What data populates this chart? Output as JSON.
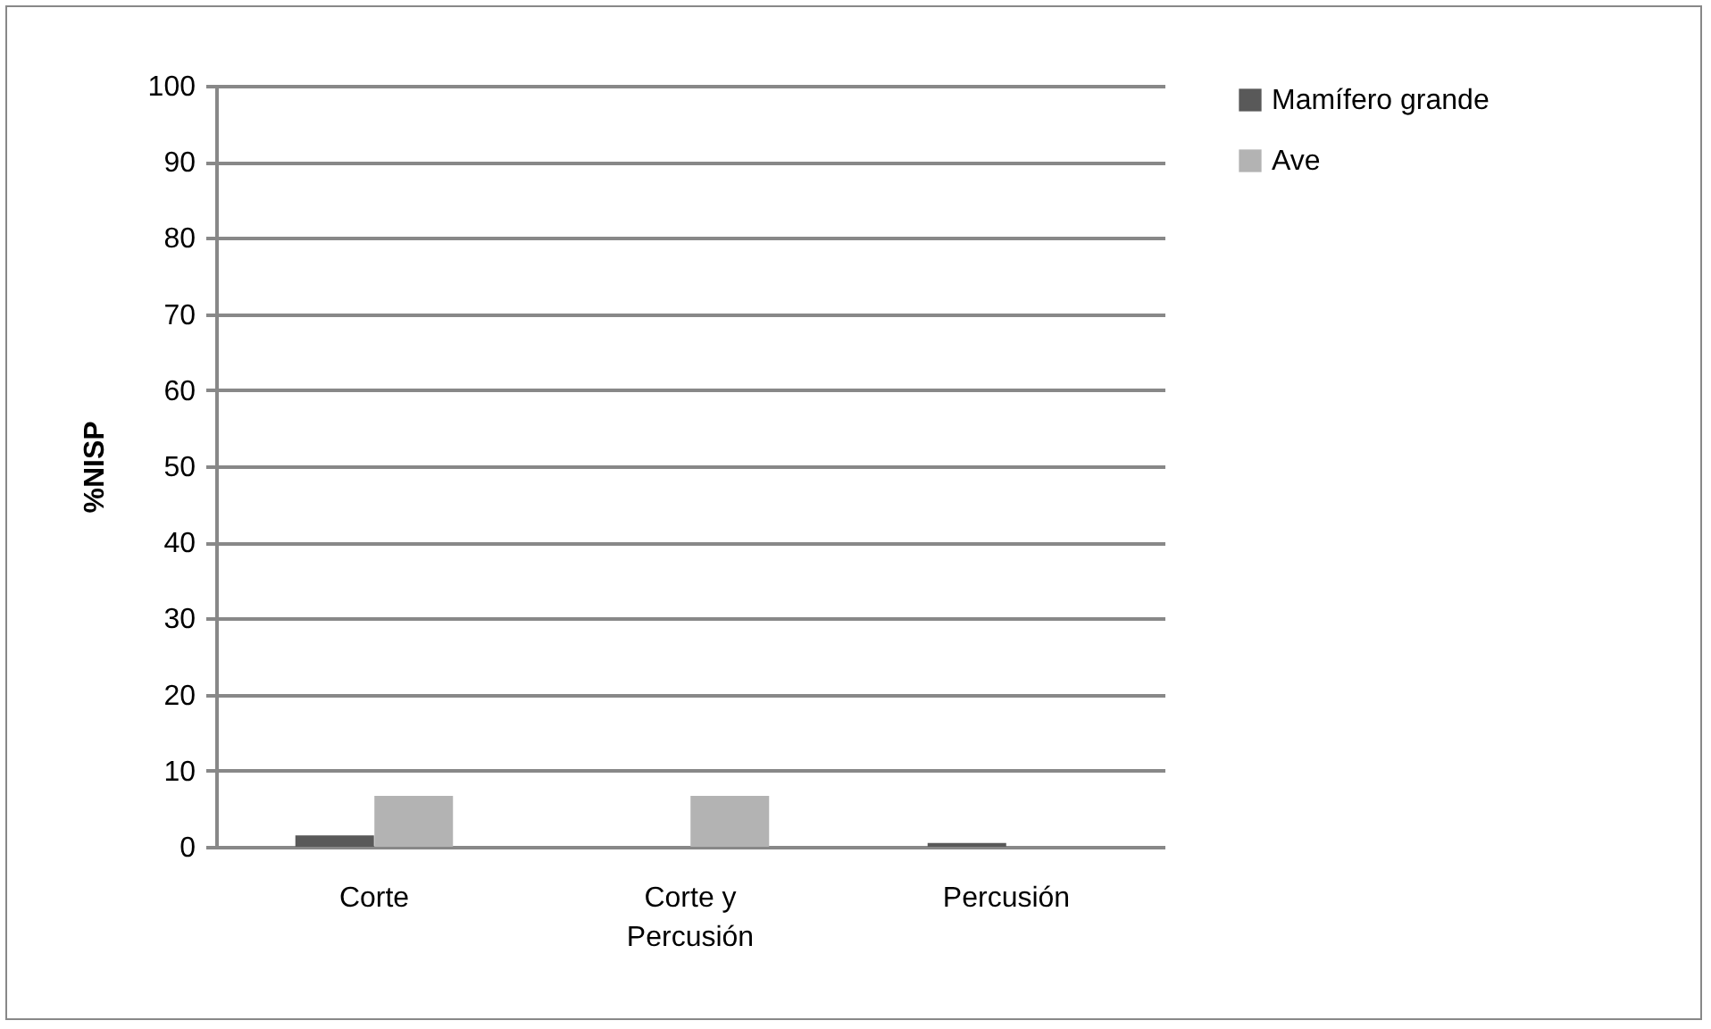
{
  "chart_data": {
    "type": "bar",
    "ylabel": "%NISP",
    "categories": [
      "Corte",
      "Corte y Percusión",
      "Percusión"
    ],
    "series": [
      {
        "name": "Mamífero grande",
        "color": "#595959",
        "values": [
          1.5,
          0,
          0.5
        ]
      },
      {
        "name": "Ave",
        "color": "#b3b3b3",
        "values": [
          6.7,
          6.7,
          0
        ]
      }
    ],
    "ylim": [
      0,
      100
    ],
    "yticks": [
      0,
      10,
      20,
      30,
      40,
      50,
      60,
      70,
      80,
      90,
      100
    ],
    "grid": "y",
    "legend": "right"
  }
}
